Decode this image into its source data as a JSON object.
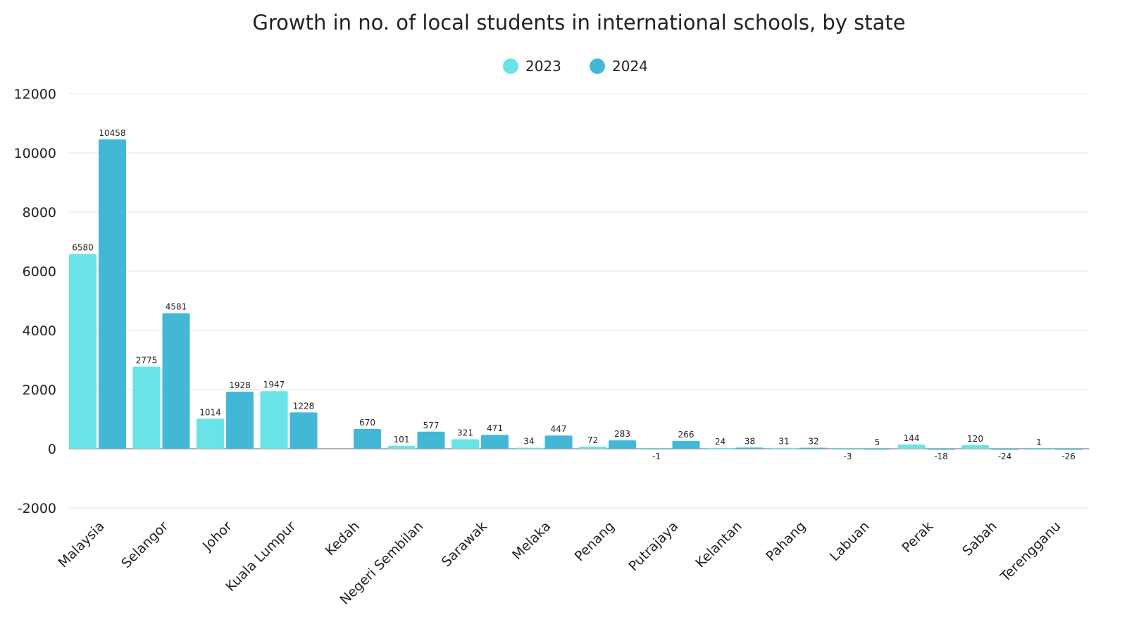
{
  "chart_data": {
    "type": "bar",
    "title": "Growth in no. of local students in international schools, by state",
    "xlabel": "",
    "ylabel": "",
    "ylim": [
      -2000,
      12000
    ],
    "yticks": [
      -2000,
      0,
      2000,
      4000,
      6000,
      8000,
      10000,
      12000
    ],
    "grid": true,
    "legend_position": "top-center",
    "categories": [
      "Malaysia",
      "Selangor",
      "Johor",
      "Kuala Lumpur",
      "Kedah",
      "Negeri Sembilan",
      "Sarawak",
      "Melaka",
      "Penang",
      "Putrajaya",
      "Kelantan",
      "Pahang",
      "Labuan",
      "Perak",
      "Sabah",
      "Terengganu"
    ],
    "series": [
      {
        "name": "2023",
        "color": "#6ae3e8",
        "values": [
          6580,
          2775,
          1014,
          1947,
          null,
          101,
          321,
          34,
          72,
          -1,
          24,
          31,
          -3,
          144,
          120,
          1
        ]
      },
      {
        "name": "2024",
        "color": "#42b8d6",
        "values": [
          10458,
          4581,
          1928,
          1228,
          670,
          577,
          471,
          447,
          283,
          266,
          38,
          32,
          5,
          -18,
          -24,
          -26
        ]
      }
    ]
  }
}
